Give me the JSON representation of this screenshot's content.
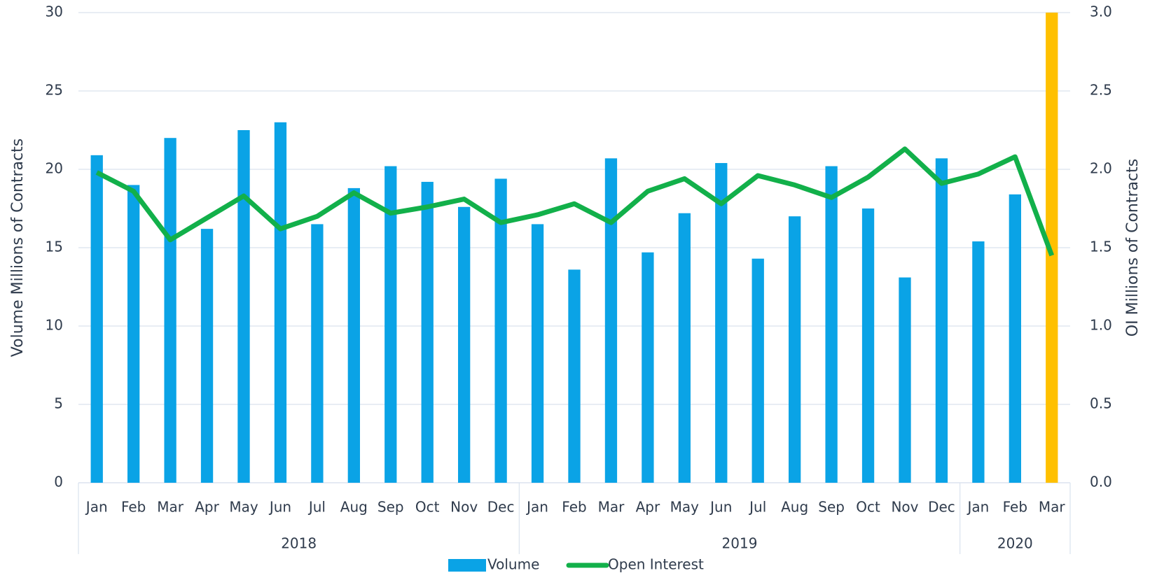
{
  "chart_data": {
    "type": "bar_line",
    "category_groups": [
      {
        "label": "2018",
        "categories": [
          "Jan",
          "Feb",
          "Mar",
          "Apr",
          "May",
          "Jun",
          "Jul",
          "Aug",
          "Sep",
          "Oct",
          "Nov",
          "Dec"
        ]
      },
      {
        "label": "2019",
        "categories": [
          "Jan",
          "Feb",
          "Mar",
          "Apr",
          "May",
          "Jun",
          "Jul",
          "Aug",
          "Sep",
          "Oct",
          "Nov",
          "Dec"
        ]
      },
      {
        "label": "2020",
        "categories": [
          "Jan",
          "Feb",
          "Mar"
        ]
      }
    ],
    "series": [
      {
        "name": "Volume",
        "type": "bar",
        "color": "#0aa3e6",
        "point_colors": [
          "#0aa3e6",
          "#0aa3e6",
          "#0aa3e6",
          "#0aa3e6",
          "#0aa3e6",
          "#0aa3e6",
          "#0aa3e6",
          "#0aa3e6",
          "#0aa3e6",
          "#0aa3e6",
          "#0aa3e6",
          "#0aa3e6",
          "#0aa3e6",
          "#0aa3e6",
          "#0aa3e6",
          "#0aa3e6",
          "#0aa3e6",
          "#0aa3e6",
          "#0aa3e6",
          "#0aa3e6",
          "#0aa3e6",
          "#0aa3e6",
          "#0aa3e6",
          "#0aa3e6",
          "#0aa3e6",
          "#0aa3e6",
          "#ffc000"
        ],
        "values": [
          20.9,
          19.0,
          22.0,
          16.2,
          22.5,
          23.0,
          16.5,
          18.8,
          20.2,
          19.2,
          17.6,
          19.4,
          16.5,
          13.6,
          20.7,
          14.7,
          17.2,
          20.4,
          14.3,
          17.0,
          20.2,
          17.5,
          13.1,
          20.7,
          15.4,
          18.4,
          30
        ]
      },
      {
        "name": "Open Interest",
        "type": "line",
        "axis": "y2",
        "color": "#12b04a",
        "values": [
          1.98,
          1.86,
          1.55,
          1.69,
          1.83,
          1.62,
          1.7,
          1.85,
          1.72,
          1.76,
          1.81,
          1.66,
          1.71,
          1.78,
          1.66,
          1.86,
          1.94,
          1.78,
          1.96,
          1.9,
          1.82,
          1.95,
          2.13,
          1.91,
          1.97,
          2.08,
          1.45
        ]
      }
    ],
    "y_label": "Volume Millions of Contracts",
    "y2_label": "OI Millions of Contracts",
    "ylim": [
      0,
      30
    ],
    "yticks": [
      0,
      5,
      10,
      15,
      20,
      25,
      30
    ],
    "y2lim": [
      0,
      3
    ],
    "y2ticks": [
      {
        "value": 0,
        "label": "0.0"
      },
      0.5,
      {
        "value": 1,
        "label": "1.0"
      },
      1.5,
      {
        "value": 2,
        "label": "2.0"
      },
      2.5,
      {
        "value": 3,
        "label": "3.0"
      }
    ],
    "grid": true,
    "legend": "bottom"
  }
}
